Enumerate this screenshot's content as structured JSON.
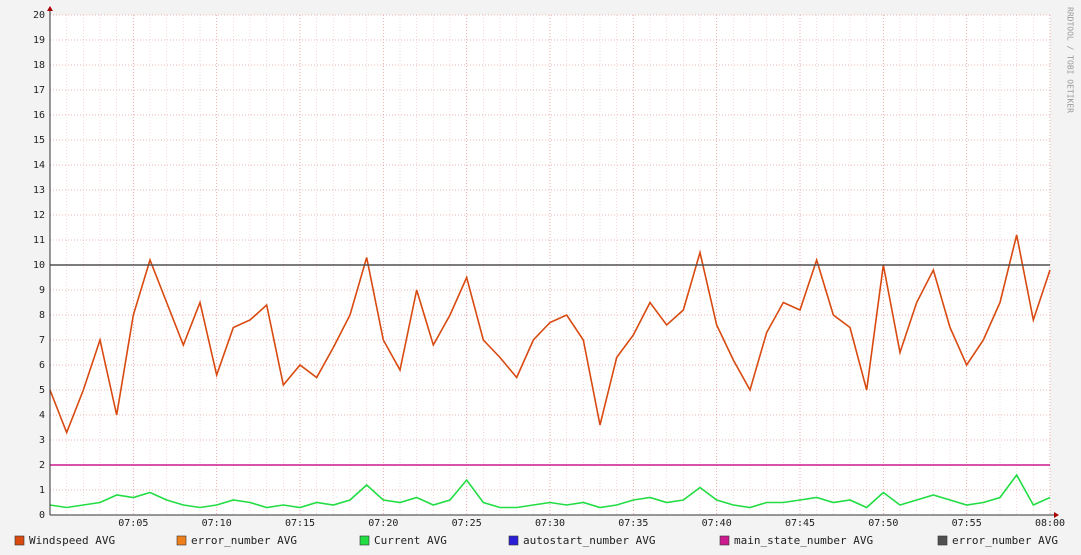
{
  "chart_data": {
    "type": "line",
    "watermark": "RRDTOOL / TOBI OETIKER",
    "x": [
      "07:00",
      "07:01",
      "07:02",
      "07:03",
      "07:04",
      "07:05",
      "07:06",
      "07:07",
      "07:08",
      "07:09",
      "07:10",
      "07:11",
      "07:12",
      "07:13",
      "07:14",
      "07:15",
      "07:16",
      "07:17",
      "07:18",
      "07:19",
      "07:20",
      "07:21",
      "07:22",
      "07:23",
      "07:24",
      "07:25",
      "07:26",
      "07:27",
      "07:28",
      "07:29",
      "07:30",
      "07:31",
      "07:32",
      "07:33",
      "07:34",
      "07:35",
      "07:36",
      "07:37",
      "07:38",
      "07:39",
      "07:40",
      "07:41",
      "07:42",
      "07:43",
      "07:44",
      "07:45",
      "07:46",
      "07:47",
      "07:48",
      "07:49",
      "07:50",
      "07:51",
      "07:52",
      "07:53",
      "07:54",
      "07:55",
      "07:56",
      "07:57",
      "07:58",
      "07:59",
      "08:00"
    ],
    "xlim": [
      "07:00",
      "08:00"
    ],
    "xticks": [
      "07:05",
      "07:10",
      "07:15",
      "07:20",
      "07:25",
      "07:30",
      "07:35",
      "07:40",
      "07:45",
      "07:50",
      "07:55",
      "08:00"
    ],
    "ylim": [
      0,
      20
    ],
    "yticks": [
      0,
      1,
      2,
      3,
      4,
      5,
      6,
      7,
      8,
      9,
      10,
      11,
      12,
      13,
      14,
      15,
      16,
      17,
      18,
      19,
      20
    ],
    "grid": true,
    "series": [
      {
        "name": "Windspeed AVG",
        "color": "#d84a10",
        "values": [
          5.0,
          3.3,
          5.0,
          7.0,
          4.0,
          8.0,
          10.2,
          8.5,
          6.8,
          8.5,
          5.6,
          7.5,
          7.8,
          8.4,
          5.2,
          6.0,
          5.5,
          6.7,
          8.0,
          10.3,
          7.0,
          5.8,
          9.0,
          6.8,
          8.0,
          9.5,
          7.0,
          6.3,
          5.5,
          7.0,
          7.7,
          8.0,
          7.0,
          3.6,
          6.3,
          7.2,
          8.5,
          7.6,
          8.2,
          10.5,
          7.6,
          6.2,
          5.0,
          7.3,
          8.5,
          8.2,
          10.2,
          8.0,
          7.5,
          5.0,
          10.0,
          6.5,
          8.5,
          9.8,
          7.5,
          6.0,
          7.0,
          8.5,
          11.2,
          7.8,
          9.8
        ]
      },
      {
        "name": "error_number AVG",
        "color": "#ee7f1a",
        "values": [
          null,
          null,
          null,
          null,
          null,
          null,
          null,
          null,
          null,
          null,
          null,
          null,
          null,
          null,
          null,
          null,
          null,
          null,
          null,
          null,
          null,
          null,
          null,
          null,
          null,
          null,
          null,
          null,
          null,
          null,
          null,
          null,
          null,
          null,
          null,
          null,
          null,
          null,
          null,
          null,
          null,
          null,
          null,
          null,
          null,
          null,
          null,
          null,
          null,
          null,
          null,
          null,
          null,
          null,
          null,
          null,
          null,
          null,
          null,
          null,
          null
        ]
      },
      {
        "name": "Current AVG",
        "color": "#22dd44",
        "values": [
          0.4,
          0.3,
          0.4,
          0.5,
          0.8,
          0.7,
          0.9,
          0.6,
          0.4,
          0.3,
          0.4,
          0.6,
          0.5,
          0.3,
          0.4,
          0.3,
          0.5,
          0.4,
          0.6,
          1.2,
          0.6,
          0.5,
          0.7,
          0.4,
          0.6,
          1.4,
          0.5,
          0.3,
          0.3,
          0.4,
          0.5,
          0.4,
          0.5,
          0.3,
          0.4,
          0.6,
          0.7,
          0.5,
          0.6,
          1.1,
          0.6,
          0.4,
          0.3,
          0.5,
          0.5,
          0.6,
          0.7,
          0.5,
          0.6,
          0.3,
          0.9,
          0.4,
          0.6,
          0.8,
          0.6,
          0.4,
          0.5,
          0.7,
          1.6,
          0.4,
          0.7
        ]
      },
      {
        "name": "autostart_number AVG",
        "color": "#2a1fd6",
        "values": [
          null,
          null,
          null,
          null,
          null,
          null,
          null,
          null,
          null,
          null,
          null,
          null,
          null,
          null,
          null,
          null,
          null,
          null,
          null,
          null,
          null,
          null,
          null,
          null,
          null,
          null,
          null,
          null,
          null,
          null,
          null,
          null,
          null,
          null,
          null,
          null,
          null,
          null,
          null,
          null,
          null,
          null,
          null,
          null,
          null,
          null,
          null,
          null,
          null,
          null,
          null,
          null,
          null,
          null,
          null,
          null,
          null,
          null,
          null,
          null,
          null
        ]
      },
      {
        "name": "main_state_number AVG",
        "color": "#cc1a8f",
        "values": [
          2,
          2,
          2,
          2,
          2,
          2,
          2,
          2,
          2,
          2,
          2,
          2,
          2,
          2,
          2,
          2,
          2,
          2,
          2,
          2,
          2,
          2,
          2,
          2,
          2,
          2,
          2,
          2,
          2,
          2,
          2,
          2,
          2,
          2,
          2,
          2,
          2,
          2,
          2,
          2,
          2,
          2,
          2,
          2,
          2,
          2,
          2,
          2,
          2,
          2,
          2,
          2,
          2,
          2,
          2,
          2,
          2,
          2,
          2,
          2,
          2
        ]
      },
      {
        "name": "error_number AVG",
        "color": "#505050",
        "values": [
          10,
          10,
          10,
          10,
          10,
          10,
          10,
          10,
          10,
          10,
          10,
          10,
          10,
          10,
          10,
          10,
          10,
          10,
          10,
          10,
          10,
          10,
          10,
          10,
          10,
          10,
          10,
          10,
          10,
          10,
          10,
          10,
          10,
          10,
          10,
          10,
          10,
          10,
          10,
          10,
          10,
          10,
          10,
          10,
          10,
          10,
          10,
          10,
          10,
          10,
          10,
          10,
          10,
          10,
          10,
          10,
          10,
          10,
          10,
          10,
          10
        ]
      }
    ]
  }
}
